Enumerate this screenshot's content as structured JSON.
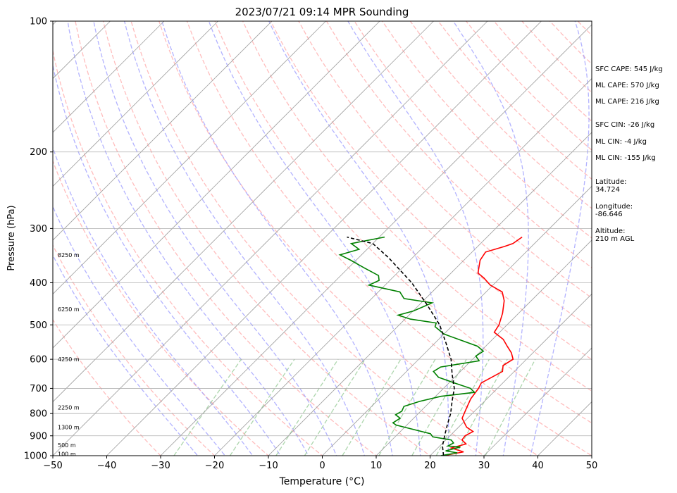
{
  "chart_data": {
    "type": "line",
    "title": "2023/07/21 09:14 MPR Sounding",
    "xlabel": "Temperature (°C)",
    "ylabel": "Pressure (hPa)",
    "xlim": [
      -50,
      50
    ],
    "ylim": [
      1000,
      100
    ],
    "y_scale": "log",
    "grid": true,
    "x_ticks": [
      -50,
      -40,
      -30,
      -20,
      -10,
      0,
      10,
      20,
      30,
      40,
      50
    ],
    "y_ticks": [
      1000,
      900,
      800,
      700,
      600,
      500,
      400,
      300,
      200,
      100
    ],
    "height_labels": [
      {
        "label": "100 m",
        "p": 991
      },
      {
        "label": "500 m",
        "p": 945
      },
      {
        "label": "1300 m",
        "p": 860
      },
      {
        "label": "2250 m",
        "p": 775
      },
      {
        "label": "4250 m",
        "p": 600
      },
      {
        "label": "6250 m",
        "p": 460
      },
      {
        "label": "8250 m",
        "p": 345
      }
    ],
    "series": [
      {
        "color": "#ff0000",
        "points": [
          [
            22.5,
            1000
          ],
          [
            25.5,
            980
          ],
          [
            22.5,
            960
          ],
          [
            24.5,
            940
          ],
          [
            23.0,
            920
          ],
          [
            22.8,
            900
          ],
          [
            23.5,
            880
          ],
          [
            21.5,
            860
          ],
          [
            19.0,
            820
          ],
          [
            18.0,
            780
          ],
          [
            17.0,
            740
          ],
          [
            16.5,
            700
          ],
          [
            16.0,
            680
          ],
          [
            17.8,
            640
          ],
          [
            16.8,
            620
          ],
          [
            17.5,
            600
          ],
          [
            16.0,
            580
          ],
          [
            14.0,
            560
          ],
          [
            12.0,
            540
          ],
          [
            9.0,
            520
          ],
          [
            8.5,
            500
          ],
          [
            7.0,
            470
          ],
          [
            5.0,
            440
          ],
          [
            3.0,
            420
          ],
          [
            -0.5,
            405
          ],
          [
            -3.0,
            390
          ],
          [
            -5.0,
            380
          ],
          [
            -7.0,
            355
          ],
          [
            -7.5,
            340
          ],
          [
            -5.0,
            330
          ],
          [
            -4.0,
            325
          ],
          [
            -3.5,
            314
          ]
        ]
      },
      {
        "color": "#008000",
        "points": [
          [
            22.0,
            1000
          ],
          [
            24.5,
            985
          ],
          [
            22.0,
            975
          ],
          [
            24.0,
            955
          ],
          [
            21.5,
            950
          ],
          [
            22.0,
            935
          ],
          [
            21.0,
            920
          ],
          [
            17.0,
            905
          ],
          [
            16.0,
            890
          ],
          [
            10.0,
            860
          ],
          [
            8.0,
            850
          ],
          [
            7.0,
            840
          ],
          [
            7.5,
            820
          ],
          [
            6.0,
            805
          ],
          [
            6.5,
            790
          ],
          [
            6.0,
            770
          ],
          [
            8.0,
            750
          ],
          [
            11.0,
            730
          ],
          [
            16.5,
            715
          ],
          [
            15.0,
            700
          ],
          [
            11.0,
            680
          ],
          [
            7.0,
            660
          ],
          [
            5.0,
            640
          ],
          [
            5.5,
            625
          ],
          [
            11.5,
            605
          ],
          [
            10.0,
            590
          ],
          [
            10.5,
            575
          ],
          [
            8.5,
            560
          ],
          [
            0.0,
            525
          ],
          [
            -3.0,
            505
          ],
          [
            -3.5,
            495
          ],
          [
            -9.0,
            485
          ],
          [
            -12.0,
            475
          ],
          [
            -10.0,
            465
          ],
          [
            -9.0,
            455
          ],
          [
            -8.0,
            445
          ],
          [
            -14.0,
            435
          ],
          [
            -16.0,
            420
          ],
          [
            -23.0,
            405
          ],
          [
            -22.0,
            395
          ],
          [
            -23.0,
            385
          ],
          [
            -27.0,
            370
          ],
          [
            -31.0,
            355
          ],
          [
            -34.0,
            345
          ],
          [
            -31.5,
            335
          ],
          [
            -34.0,
            325
          ],
          [
            -29.0,
            314
          ]
        ]
      },
      {
        "color": "#000000",
        "dashed": true,
        "points": [
          [
            22.5,
            1000
          ],
          [
            20.5,
            950
          ],
          [
            19.0,
            900
          ],
          [
            17.5,
            850
          ],
          [
            16.0,
            800
          ],
          [
            14.0,
            750
          ],
          [
            12.0,
            700
          ],
          [
            9.0,
            650
          ],
          [
            6.0,
            600
          ],
          [
            2.0,
            550
          ],
          [
            -2.5,
            500
          ],
          [
            -8.5,
            450
          ],
          [
            -15.5,
            400
          ],
          [
            -24.5,
            350
          ],
          [
            -30.0,
            325
          ],
          [
            -36.0,
            314
          ]
        ]
      }
    ],
    "background_lines": {
      "dry_adiabats_color": "#ff9999",
      "moist_adiabats_color": "#9999ff",
      "mixing_ratio_color": "#99cc99",
      "isotherm_color": "#a0a0a0"
    }
  },
  "annotations": {
    "sfc_cape": "SFC CAPE: 545 J/kg",
    "ml_cape_1": "ML CAPE: 570 J/kg",
    "ml_cape_2": "ML CAPE: 216 J/kg",
    "sfc_cin": "SFC CIN: -26 J/kg",
    "ml_cin_1": "ML CIN: -4 J/kg",
    "ml_cin_2": "ML CIN: -155 J/kg",
    "latitude_label": "Latitude:",
    "latitude_value": "34.724",
    "longitude_label": "Longitude:",
    "longitude_value": "-86.646",
    "altitude_label": "Altitude:",
    "altitude_value": "210 m AGL"
  }
}
